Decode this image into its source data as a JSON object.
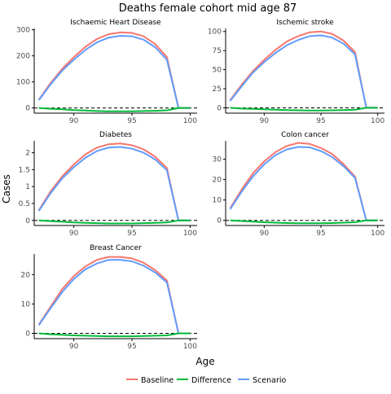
{
  "figure": {
    "title": "Deaths female cohort mid age 87",
    "xlabel": "Age",
    "ylabel": "Cases"
  },
  "legend": {
    "position": "bottom",
    "items": [
      {
        "label": "Baseline",
        "color": "#F8766D"
      },
      {
        "label": "Difference",
        "color": "#00BA38"
      },
      {
        "label": "Scenario",
        "color": "#619CFF"
      }
    ]
  },
  "colors": {
    "baseline": "#F8766D",
    "difference": "#00BA38",
    "scenario": "#619CFF",
    "axis": "#000000",
    "zero_line": "#000000"
  },
  "chart_data": [
    {
      "type": "line",
      "title": "Ischaemic Heart Disease",
      "xlim": [
        86.6,
        100.6
      ],
      "ylim": [
        -20,
        305
      ],
      "xticks": [
        90,
        95,
        100
      ],
      "yticks": [
        0,
        100,
        200,
        300
      ],
      "x": [
        87,
        88,
        89,
        90,
        91,
        92,
        93,
        94,
        95,
        96,
        97,
        98,
        99,
        100
      ],
      "series": [
        {
          "name": "Baseline",
          "values": [
            32,
            95,
            150,
            195,
            235,
            265,
            283,
            290,
            288,
            275,
            245,
            195,
            0,
            0
          ]
        },
        {
          "name": "Scenario",
          "values": [
            30,
            90,
            143,
            185,
            223,
            252,
            270,
            277,
            275,
            262,
            233,
            185,
            0,
            0
          ]
        },
        {
          "name": "Difference",
          "values": [
            0,
            -3,
            -5,
            -8,
            -10,
            -12,
            -13,
            -13,
            -13,
            -12,
            -11,
            -9,
            0,
            0
          ]
        }
      ]
    },
    {
      "type": "line",
      "title": "Ischemic stroke",
      "xlim": [
        86.6,
        100.6
      ],
      "ylim": [
        -7,
        104
      ],
      "xticks": [
        90,
        95,
        100
      ],
      "yticks": [
        0,
        25,
        50,
        75,
        100
      ],
      "x": [
        87,
        88,
        89,
        90,
        91,
        92,
        93,
        94,
        95,
        96,
        97,
        98,
        99,
        100
      ],
      "series": [
        {
          "name": "Baseline",
          "values": [
            10,
            30,
            48,
            63,
            76,
            87,
            94,
            99,
            100,
            97,
            88,
            73,
            0,
            0
          ]
        },
        {
          "name": "Scenario",
          "values": [
            9,
            28,
            46,
            60,
            72,
            82,
            89,
            94,
            95,
            92,
            84,
            70,
            0,
            0
          ]
        },
        {
          "name": "Difference",
          "values": [
            0,
            -1,
            -1.5,
            -2,
            -2.5,
            -3,
            -3.3,
            -3.5,
            -3.5,
            -3.3,
            -3,
            -2.5,
            0,
            0
          ]
        }
      ]
    },
    {
      "type": "line",
      "title": "Diabetes",
      "xlim": [
        86.6,
        100.6
      ],
      "ylim": [
        -0.15,
        2.35
      ],
      "xticks": [
        90,
        95,
        100
      ],
      "yticks": [
        0.0,
        0.5,
        1.0,
        1.5,
        2.0
      ],
      "x": [
        87,
        88,
        89,
        90,
        91,
        92,
        93,
        94,
        95,
        96,
        97,
        98,
        99,
        100
      ],
      "series": [
        {
          "name": "Baseline",
          "values": [
            0.3,
            0.85,
            1.3,
            1.65,
            1.95,
            2.15,
            2.25,
            2.27,
            2.22,
            2.1,
            1.88,
            1.55,
            0,
            0
          ]
        },
        {
          "name": "Scenario",
          "values": [
            0.28,
            0.8,
            1.24,
            1.57,
            1.85,
            2.05,
            2.15,
            2.17,
            2.12,
            2.0,
            1.8,
            1.48,
            0,
            0
          ]
        },
        {
          "name": "Difference",
          "values": [
            0,
            -0.02,
            -0.04,
            -0.06,
            -0.07,
            -0.08,
            -0.09,
            -0.09,
            -0.09,
            -0.08,
            -0.07,
            -0.06,
            0,
            0
          ]
        }
      ]
    },
    {
      "type": "line",
      "title": "Colon cancer",
      "xlim": [
        86.6,
        100.6
      ],
      "ylim": [
        -2.5,
        39
      ],
      "xticks": [
        90,
        95,
        100
      ],
      "yticks": [
        0,
        10,
        20,
        30
      ],
      "x": [
        87,
        88,
        89,
        90,
        91,
        92,
        93,
        94,
        95,
        96,
        97,
        98,
        99,
        100
      ],
      "series": [
        {
          "name": "Baseline",
          "values": [
            6,
            15,
            23,
            29,
            33.5,
            36.5,
            38,
            37.5,
            35.5,
            32.5,
            27.5,
            21.5,
            0,
            0
          ]
        },
        {
          "name": "Scenario",
          "values": [
            5.5,
            14,
            21.5,
            27.5,
            32,
            34.8,
            36,
            35.8,
            34,
            31,
            26.5,
            20.8,
            0,
            0
          ]
        },
        {
          "name": "Difference",
          "values": [
            0,
            -0.3,
            -0.6,
            -0.9,
            -1.1,
            -1.3,
            -1.4,
            -1.4,
            -1.4,
            -1.3,
            -1.1,
            -0.9,
            0,
            0
          ]
        }
      ]
    },
    {
      "type": "line",
      "title": "Breast Cancer",
      "xlim": [
        86.6,
        100.6
      ],
      "ylim": [
        -1.8,
        27
      ],
      "xticks": [
        90,
        95,
        100
      ],
      "yticks": [
        0,
        10,
        20
      ],
      "x": [
        87,
        88,
        89,
        90,
        91,
        92,
        93,
        94,
        95,
        96,
        97,
        98,
        99,
        100
      ],
      "series": [
        {
          "name": "Baseline",
          "values": [
            3,
            9,
            15,
            19.5,
            22.8,
            25,
            26,
            26,
            25.5,
            24,
            21.5,
            18,
            0,
            0
          ]
        },
        {
          "name": "Scenario",
          "values": [
            2.8,
            8.5,
            14,
            18.5,
            21.8,
            23.8,
            25,
            25,
            24.5,
            23,
            20.7,
            17.3,
            0,
            0
          ]
        },
        {
          "name": "Difference",
          "values": [
            0,
            -0.3,
            -0.5,
            -0.7,
            -0.8,
            -0.9,
            -1,
            -1,
            -1,
            -0.9,
            -0.8,
            -0.7,
            0,
            0
          ]
        }
      ]
    }
  ]
}
